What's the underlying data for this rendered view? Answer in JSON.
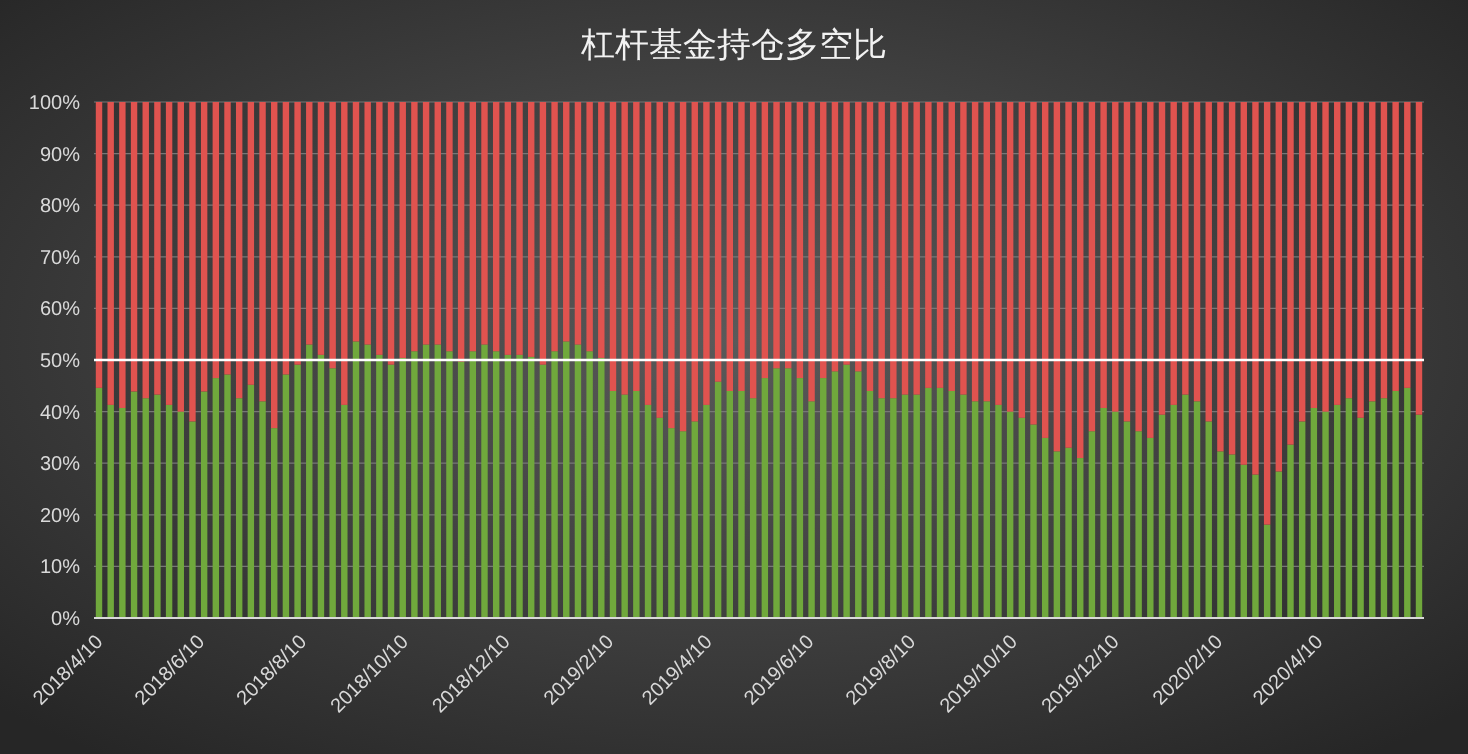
{
  "chart_data": {
    "type": "bar",
    "title": "杠杆基金持仓多空比",
    "stacked": true,
    "x": [
      "2018-04-10",
      "2018-04-17",
      "2018-04-24",
      "2018-05-01",
      "2018-05-08",
      "2018-05-15",
      "2018-05-22",
      "2018-05-29",
      "2018-06-05",
      "2018-06-12",
      "2018-06-19",
      "2018-06-26",
      "2018-07-03",
      "2018-07-10",
      "2018-07-17",
      "2018-07-24",
      "2018-07-31",
      "2018-08-07",
      "2018-08-14",
      "2018-08-21",
      "2018-08-28",
      "2018-09-04",
      "2018-09-11",
      "2018-09-18",
      "2018-09-25",
      "2018-10-02",
      "2018-10-09",
      "2018-10-16",
      "2018-10-23",
      "2018-10-30",
      "2018-11-06",
      "2018-11-13",
      "2018-11-20",
      "2018-11-27",
      "2018-12-04",
      "2018-12-11",
      "2018-12-18",
      "2018-12-25",
      "2019-01-01",
      "2019-01-08",
      "2019-01-15",
      "2019-01-22",
      "2019-01-29",
      "2019-02-05",
      "2019-02-12",
      "2019-02-19",
      "2019-02-26",
      "2019-03-05",
      "2019-03-12",
      "2019-03-19",
      "2019-03-26",
      "2019-04-02",
      "2019-04-09",
      "2019-04-16",
      "2019-04-23",
      "2019-04-30",
      "2019-05-07",
      "2019-05-14",
      "2019-05-21",
      "2019-05-28",
      "2019-06-04",
      "2019-06-11",
      "2019-06-18",
      "2019-06-25",
      "2019-07-02",
      "2019-07-09",
      "2019-07-16",
      "2019-07-23",
      "2019-07-30",
      "2019-08-06",
      "2019-08-13",
      "2019-08-20",
      "2019-08-27",
      "2019-09-03",
      "2019-09-10",
      "2019-09-17",
      "2019-09-24",
      "2019-10-01",
      "2019-10-08",
      "2019-10-15",
      "2019-10-22",
      "2019-10-29",
      "2019-11-05",
      "2019-11-12",
      "2019-11-19",
      "2019-11-26",
      "2019-12-03",
      "2019-12-10",
      "2019-12-17",
      "2019-12-24",
      "2019-12-31",
      "2020-01-07",
      "2020-01-14",
      "2020-01-21",
      "2020-01-28",
      "2020-02-04",
      "2020-02-11",
      "2020-02-18",
      "2020-02-25",
      "2020-03-03",
      "2020-03-10",
      "2020-03-17",
      "2020-03-24",
      "2020-03-31",
      "2020-04-07",
      "2020-04-14",
      "2020-04-21",
      "2020-04-28",
      "2020-05-05",
      "2020-05-12",
      "2020-05-19",
      "2020-05-26",
      "2020-06-02",
      "2020-06-09"
    ],
    "series": [
      {
        "color": "#70a83c",
        "values": [
          44.6,
          41.3,
          40.7,
          43.9,
          42.6,
          43.3,
          41.3,
          40,
          38.1,
          43.9,
          46.5,
          47.2,
          42.6,
          45.2,
          42,
          36.8,
          47.2,
          49.1,
          53,
          51,
          48.4,
          41.3,
          53.6,
          53,
          51,
          49.1,
          50.4,
          51.7,
          53,
          53,
          51.7,
          49.7,
          51.7,
          53,
          51.7,
          51,
          51,
          50.6,
          49.1,
          51.7,
          53.6,
          53,
          51.7,
          50.4,
          44,
          43.3,
          44,
          41.3,
          38.8,
          36.8,
          36.2,
          38.1,
          41.3,
          45.8,
          44,
          44,
          42.6,
          46.5,
          48.4,
          48.4,
          46.5,
          42,
          46.5,
          47.8,
          49.1,
          47.8,
          44,
          42.6,
          42.6,
          43.3,
          43.3,
          44.6,
          44.6,
          44,
          43.3,
          42,
          42,
          41.3,
          40,
          38.8,
          37.5,
          34.9,
          32.3,
          33,
          31,
          36.2,
          40.7,
          40,
          38.1,
          36.2,
          34.9,
          39.4,
          41.3,
          43.3,
          42,
          38.1,
          32.3,
          31.7,
          29.7,
          27.8,
          18.1,
          28.4,
          33.6,
          38.1,
          40.7,
          40,
          41.3,
          42.6,
          38.8,
          42,
          42.6,
          44,
          44.6,
          39.4
        ]
      },
      {
        "color": "#e0534f",
        "values": [
          55.4,
          58.7,
          59.3,
          56.1,
          57.4,
          56.7,
          58.7,
          60,
          61.9,
          56.1,
          53.5,
          52.8,
          57.4,
          54.8,
          58,
          63.2,
          52.8,
          50.9,
          47,
          49,
          51.6,
          58.7,
          46.4,
          47,
          49,
          50.9,
          49.6,
          48.3,
          47,
          47,
          48.3,
          50.3,
          48.3,
          47,
          48.3,
          49,
          49,
          49.4,
          50.9,
          48.3,
          46.4,
          47,
          48.3,
          49.6,
          56,
          56.7,
          56,
          58.7,
          61.2,
          63.2,
          63.8,
          61.9,
          58.7,
          54.2,
          56,
          56,
          57.4,
          53.5,
          51.6,
          51.6,
          53.5,
          58,
          53.5,
          52.2,
          50.9,
          52.2,
          56,
          57.4,
          57.4,
          56.7,
          56.7,
          55.4,
          55.4,
          56,
          56.7,
          58,
          58,
          58.7,
          60,
          61.2,
          62.5,
          65.1,
          67.7,
          67,
          69,
          63.8,
          59.3,
          60,
          61.9,
          63.8,
          65.1,
          60.6,
          58.7,
          56.7,
          58,
          61.9,
          67.7,
          68.3,
          70.3,
          72.2,
          81.9,
          71.6,
          66.4,
          61.9,
          59.3,
          60,
          58.7,
          57.4,
          61.2,
          58,
          57.4,
          56,
          55.4,
          60.6
        ]
      }
    ],
    "xlim": [
      "2018-04-07",
      "2020-06-12"
    ],
    "xticks": [
      {
        "value": "2018-04-10",
        "label": "2018/4/10"
      },
      {
        "value": "2018-06-10",
        "label": "2018/6/10"
      },
      {
        "value": "2018-08-10",
        "label": "2018/8/10"
      },
      {
        "value": "2018-10-10",
        "label": "2018/10/10"
      },
      {
        "value": "2018-12-10",
        "label": "2018/12/10"
      },
      {
        "value": "2019-02-10",
        "label": "2019/2/10"
      },
      {
        "value": "2019-04-10",
        "label": "2019/4/10"
      },
      {
        "value": "2019-06-10",
        "label": "2019/6/10"
      },
      {
        "value": "2019-08-10",
        "label": "2019/8/10"
      },
      {
        "value": "2019-10-10",
        "label": "2019/10/10"
      },
      {
        "value": "2019-12-10",
        "label": "2019/12/10"
      },
      {
        "value": "2020-02-10",
        "label": "2020/2/10"
      },
      {
        "value": "2020-04-10",
        "label": "2020/4/10"
      }
    ],
    "ylim": [
      0,
      100
    ],
    "yticks": [
      {
        "value": 0,
        "label": "0%"
      },
      {
        "value": 10,
        "label": "10%"
      },
      {
        "value": 20,
        "label": "20%"
      },
      {
        "value": 30,
        "label": "30%"
      },
      {
        "value": 40,
        "label": "40%"
      },
      {
        "value": 50,
        "label": "50%"
      },
      {
        "value": 60,
        "label": "60%"
      },
      {
        "value": 70,
        "label": "70%"
      },
      {
        "value": 80,
        "label": "80%"
      },
      {
        "value": 90,
        "label": "90%"
      },
      {
        "value": 100,
        "label": "100%"
      }
    ],
    "grid": "y",
    "ref_lines": [
      {
        "axis": "y",
        "value": 50,
        "color": "#ffffff"
      }
    ]
  }
}
